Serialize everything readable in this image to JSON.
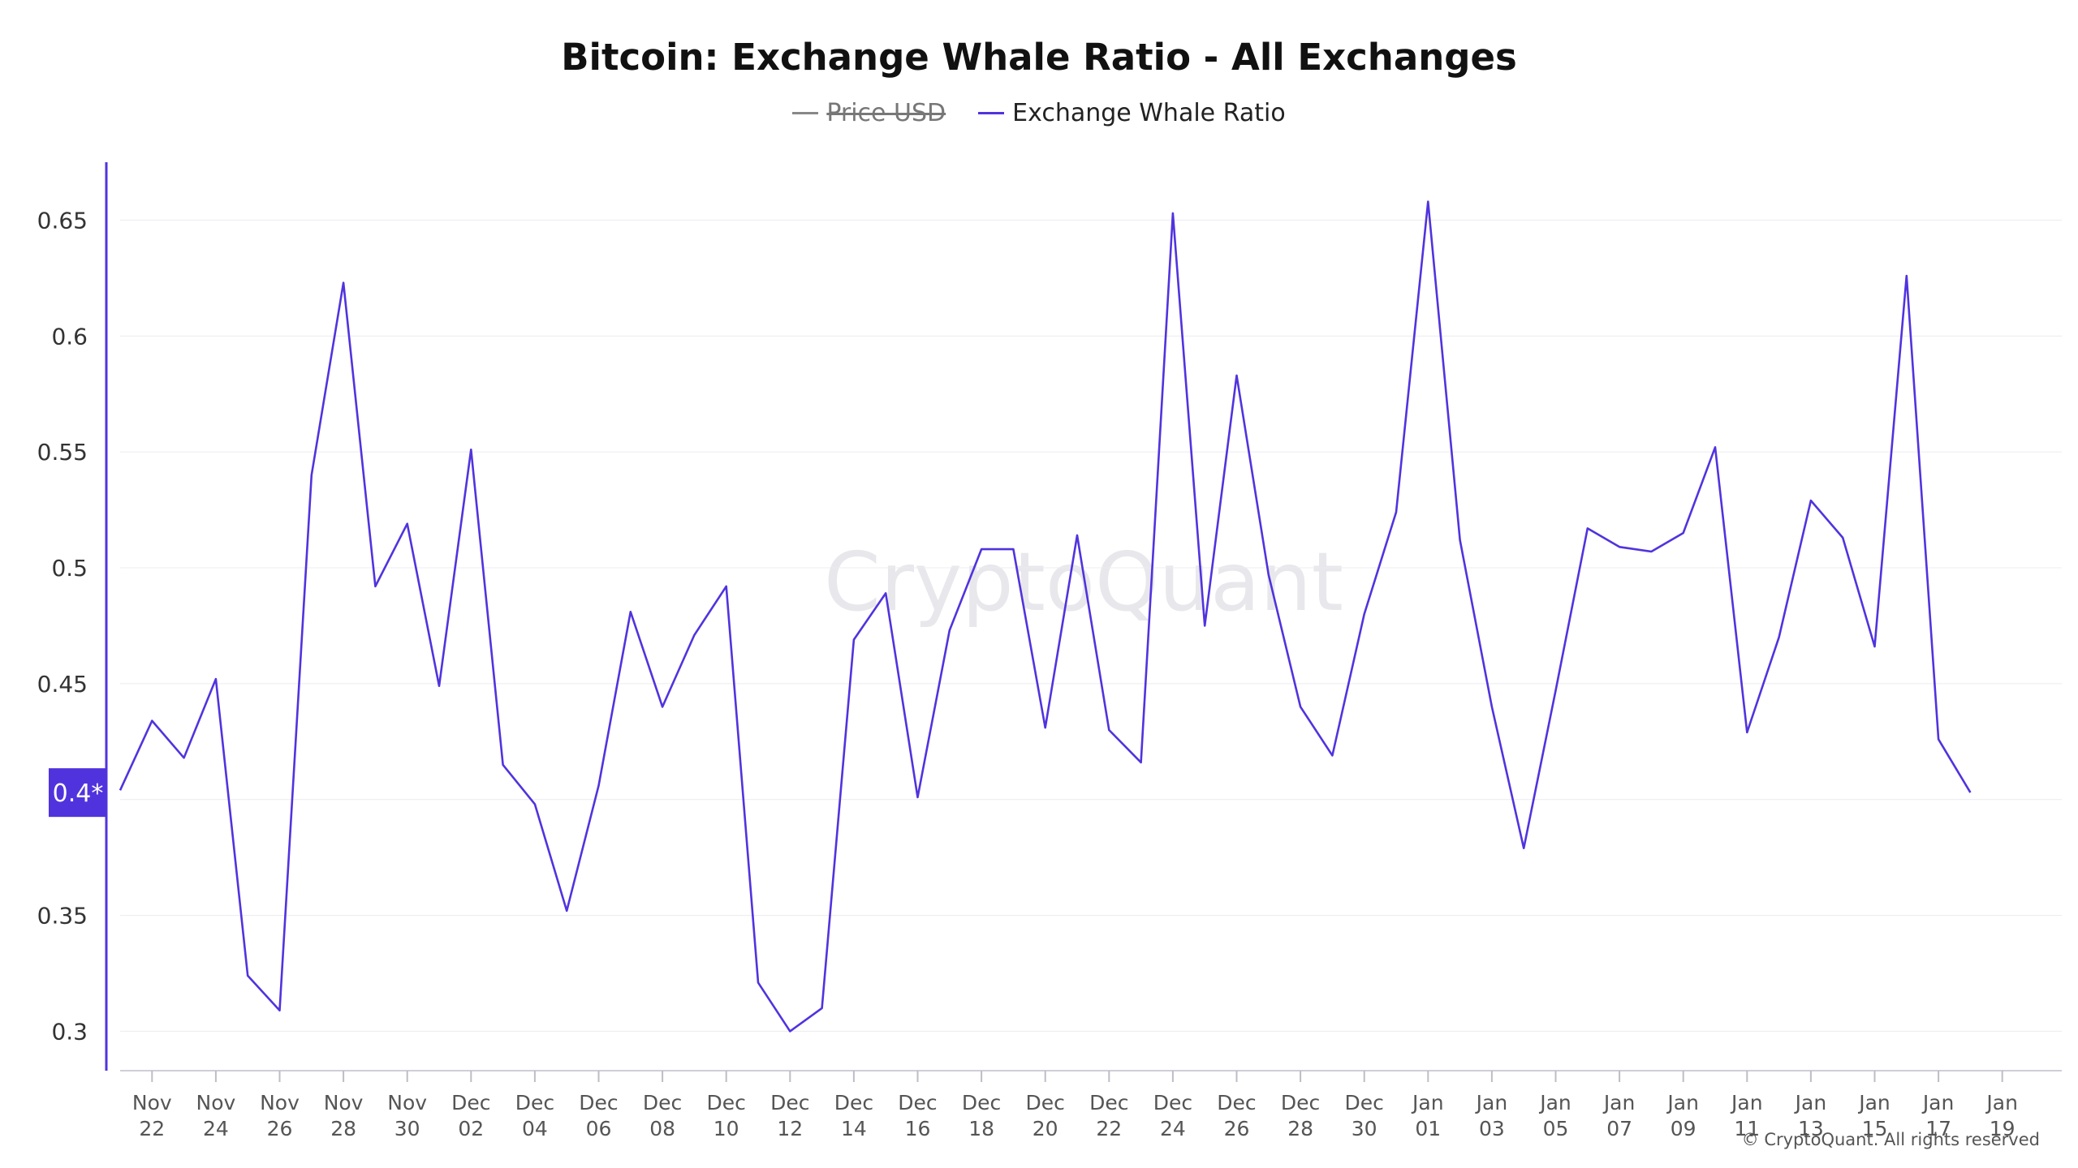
{
  "chart_data": {
    "type": "line",
    "title": "Bitcoin: Exchange Whale Ratio - All Exchanges",
    "legend": [
      {
        "label": "Price USD",
        "color": "#888888",
        "hidden": true
      },
      {
        "label": "Exchange Whale Ratio",
        "color": "#5133de",
        "hidden": false
      }
    ],
    "legend_position": "top-center",
    "x_tick_labels": [
      [
        "Nov",
        "22"
      ],
      [
        "Nov",
        "24"
      ],
      [
        "Nov",
        "26"
      ],
      [
        "Nov",
        "28"
      ],
      [
        "Nov",
        "30"
      ],
      [
        "Dec",
        "02"
      ],
      [
        "Dec",
        "04"
      ],
      [
        "Dec",
        "06"
      ],
      [
        "Dec",
        "08"
      ],
      [
        "Dec",
        "10"
      ],
      [
        "Dec",
        "12"
      ],
      [
        "Dec",
        "14"
      ],
      [
        "Dec",
        "16"
      ],
      [
        "Dec",
        "18"
      ],
      [
        "Dec",
        "20"
      ],
      [
        "Dec",
        "22"
      ],
      [
        "Dec",
        "24"
      ],
      [
        "Dec",
        "26"
      ],
      [
        "Dec",
        "28"
      ],
      [
        "Dec",
        "30"
      ],
      [
        "Jan",
        "01"
      ],
      [
        "Jan",
        "03"
      ],
      [
        "Jan",
        "05"
      ],
      [
        "Jan",
        "07"
      ],
      [
        "Jan",
        "09"
      ],
      [
        "Jan",
        "11"
      ],
      [
        "Jan",
        "13"
      ],
      [
        "Jan",
        "15"
      ],
      [
        "Jan",
        "17"
      ],
      [
        "Jan",
        "19"
      ]
    ],
    "y_ticks": [
      "0.3",
      "0.35",
      "0.4",
      "0.45",
      "0.5",
      "0.55",
      "0.6",
      "0.65"
    ],
    "ylim": [
      0.283,
      0.675
    ],
    "grid": true,
    "current_value_label": "0.4*",
    "series": [
      {
        "name": "Exchange Whale Ratio",
        "color": "#5133de",
        "x": [
          "2022-11-21",
          "2022-11-22",
          "2022-11-23",
          "2022-11-24",
          "2022-11-25",
          "2022-11-26",
          "2022-11-27",
          "2022-11-28",
          "2022-11-29",
          "2022-11-30",
          "2022-12-01",
          "2022-12-02",
          "2022-12-03",
          "2022-12-04",
          "2022-12-05",
          "2022-12-06",
          "2022-12-07",
          "2022-12-08",
          "2022-12-09",
          "2022-12-10",
          "2022-12-11",
          "2022-12-12",
          "2022-12-13",
          "2022-12-14",
          "2022-12-15",
          "2022-12-16",
          "2022-12-17",
          "2022-12-18",
          "2022-12-19",
          "2022-12-20",
          "2022-12-21",
          "2022-12-22",
          "2022-12-23",
          "2022-12-24",
          "2022-12-25",
          "2022-12-26",
          "2022-12-27",
          "2022-12-28",
          "2022-12-29",
          "2022-12-30",
          "2022-12-31",
          "2023-01-01",
          "2023-01-02",
          "2023-01-03",
          "2023-01-04",
          "2023-01-05",
          "2023-01-06",
          "2023-01-07",
          "2023-01-08",
          "2023-01-09",
          "2023-01-10",
          "2023-01-11",
          "2023-01-12",
          "2023-01-13",
          "2023-01-14",
          "2023-01-15",
          "2023-01-16",
          "2023-01-17",
          "2023-01-18"
        ],
        "values": [
          0.404,
          0.434,
          0.418,
          0.452,
          0.324,
          0.309,
          0.54,
          0.623,
          0.492,
          0.519,
          0.449,
          0.551,
          0.415,
          0.398,
          0.352,
          0.406,
          0.481,
          0.44,
          0.471,
          0.492,
          0.321,
          0.3,
          0.31,
          0.469,
          0.489,
          0.401,
          0.473,
          0.508,
          0.508,
          0.431,
          0.514,
          0.43,
          0.416,
          0.653,
          0.475,
          0.583,
          0.497,
          0.44,
          0.419,
          0.48,
          0.524,
          0.658,
          0.512,
          0.44,
          0.379,
          0.447,
          0.517,
          0.509,
          0.507,
          0.515,
          0.552,
          0.429,
          0.47,
          0.529,
          0.513,
          0.466,
          0.626,
          0.426,
          0.403
        ]
      }
    ]
  },
  "watermark": "CryptoQuant",
  "copyright": "© CryptoQuant. All rights reserved"
}
